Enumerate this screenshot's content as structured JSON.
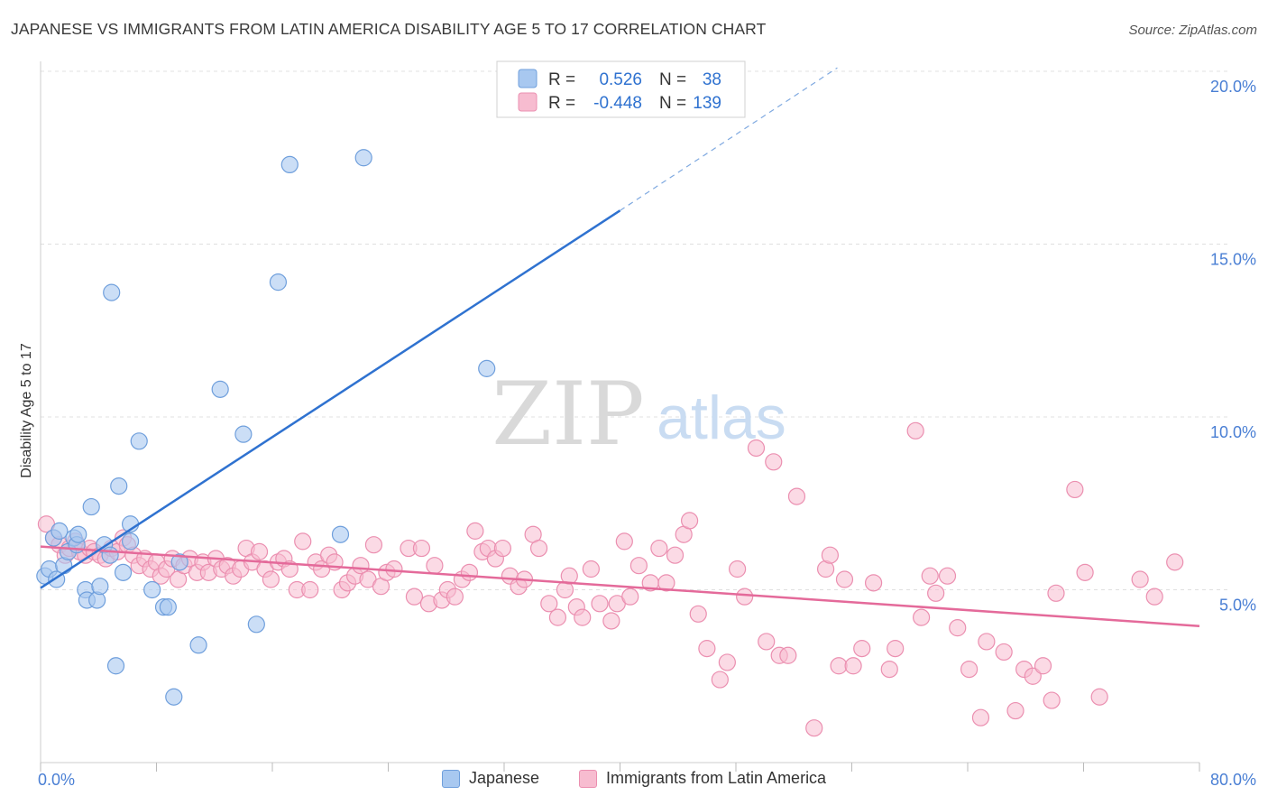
{
  "title": "JAPANESE VS IMMIGRANTS FROM LATIN AMERICA DISABILITY AGE 5 TO 17 CORRELATION CHART",
  "source": "Source: ZipAtlas.com",
  "watermark": {
    "zip": "ZIP",
    "atlas": "atlas"
  },
  "legend_top": {
    "r_label": "R =",
    "n_label": "N =",
    "rows": [
      {
        "r": "0.526",
        "n": "38"
      },
      {
        "r": "-0.448",
        "n": "139"
      }
    ]
  },
  "colors": {
    "japanese_fill": "#a8c8f0",
    "japanese_stroke": "#6f9fdc",
    "japanese_line": "#2f72d0",
    "latin_fill": "#f7bcd0",
    "latin_stroke": "#eb8fb0",
    "latin_line": "#e46a9a",
    "tick_text": "#4a7fd4",
    "grid": "#e0e0e0"
  },
  "chart_data": {
    "type": "scatter",
    "title": "JAPANESE VS IMMIGRANTS FROM LATIN AMERICA DISABILITY AGE 5 TO 17 CORRELATION CHART",
    "xlabel": "",
    "ylabel": "Disability Age 5 to 17",
    "xlim": [
      0,
      80
    ],
    "ylim": [
      0,
      20
    ],
    "x_tick_labels": [
      "0.0%",
      "80.0%"
    ],
    "y_ticks": [
      5,
      10,
      15,
      20
    ],
    "y_tick_labels": [
      "5.0%",
      "10.0%",
      "15.0%",
      "20.0%"
    ],
    "grid": true,
    "legend_position": "bottom",
    "series": [
      {
        "name": "Japanese",
        "points": [
          [
            0.3,
            5.4
          ],
          [
            0.6,
            5.6
          ],
          [
            0.9,
            6.5
          ],
          [
            1.1,
            5.3
          ],
          [
            1.3,
            6.7
          ],
          [
            1.6,
            5.7
          ],
          [
            1.9,
            6.1
          ],
          [
            2.3,
            6.5
          ],
          [
            2.5,
            6.3
          ],
          [
            2.6,
            6.6
          ],
          [
            3.1,
            5.0
          ],
          [
            3.2,
            4.7
          ],
          [
            3.5,
            7.4
          ],
          [
            3.9,
            4.7
          ],
          [
            4.1,
            5.1
          ],
          [
            4.4,
            6.3
          ],
          [
            4.8,
            6.0
          ],
          [
            4.9,
            13.6
          ],
          [
            5.2,
            2.8
          ],
          [
            5.4,
            8.0
          ],
          [
            5.7,
            5.5
          ],
          [
            6.2,
            6.4
          ],
          [
            6.2,
            6.9
          ],
          [
            6.8,
            9.3
          ],
          [
            7.7,
            5.0
          ],
          [
            8.5,
            4.5
          ],
          [
            8.8,
            4.5
          ],
          [
            9.2,
            1.9
          ],
          [
            9.6,
            5.8
          ],
          [
            10.9,
            3.4
          ],
          [
            12.4,
            10.8
          ],
          [
            14.0,
            9.5
          ],
          [
            14.9,
            4.0
          ],
          [
            16.4,
            13.9
          ],
          [
            17.2,
            17.3
          ],
          [
            20.7,
            6.6
          ],
          [
            22.3,
            17.5
          ],
          [
            30.8,
            11.4
          ]
        ],
        "trend": {
          "x": [
            0,
            40
          ],
          "y": [
            5.05,
            15.97
          ]
        },
        "trend_extension": {
          "x": [
            40,
            55
          ],
          "y": [
            15.97,
            20.1
          ]
        }
      },
      {
        "name": "Immigrants from Latin America",
        "points": [
          [
            0.4,
            6.9
          ],
          [
            0.9,
            6.5
          ],
          [
            1.3,
            6.3
          ],
          [
            1.7,
            6.0
          ],
          [
            2.0,
            6.2
          ],
          [
            2.4,
            6.4
          ],
          [
            2.7,
            6.1
          ],
          [
            3.1,
            6.0
          ],
          [
            3.4,
            6.2
          ],
          [
            3.7,
            6.1
          ],
          [
            4.1,
            6.0
          ],
          [
            4.5,
            5.9
          ],
          [
            4.9,
            6.2
          ],
          [
            5.3,
            6.1
          ],
          [
            5.7,
            6.5
          ],
          [
            6.0,
            6.3
          ],
          [
            6.4,
            6.0
          ],
          [
            6.8,
            5.7
          ],
          [
            7.2,
            5.9
          ],
          [
            7.6,
            5.6
          ],
          [
            8.0,
            5.8
          ],
          [
            8.3,
            5.4
          ],
          [
            8.7,
            5.6
          ],
          [
            9.1,
            5.9
          ],
          [
            9.5,
            5.3
          ],
          [
            9.9,
            5.7
          ],
          [
            10.3,
            5.9
          ],
          [
            10.8,
            5.5
          ],
          [
            11.2,
            5.8
          ],
          [
            11.6,
            5.5
          ],
          [
            12.1,
            5.9
          ],
          [
            12.5,
            5.6
          ],
          [
            12.9,
            5.7
          ],
          [
            13.3,
            5.4
          ],
          [
            13.8,
            5.6
          ],
          [
            14.2,
            6.2
          ],
          [
            14.6,
            5.8
          ],
          [
            15.1,
            6.1
          ],
          [
            15.5,
            5.6
          ],
          [
            15.9,
            5.3
          ],
          [
            16.4,
            5.8
          ],
          [
            16.8,
            5.9
          ],
          [
            17.2,
            5.6
          ],
          [
            17.7,
            5.0
          ],
          [
            18.1,
            6.4
          ],
          [
            18.6,
            5.0
          ],
          [
            19.0,
            5.8
          ],
          [
            19.4,
            5.6
          ],
          [
            19.9,
            6.0
          ],
          [
            20.3,
            5.8
          ],
          [
            20.8,
            5.0
          ],
          [
            21.2,
            5.2
          ],
          [
            21.7,
            5.4
          ],
          [
            22.1,
            5.7
          ],
          [
            22.6,
            5.3
          ],
          [
            23.0,
            6.3
          ],
          [
            23.5,
            5.1
          ],
          [
            23.9,
            5.5
          ],
          [
            24.4,
            5.6
          ],
          [
            25.4,
            6.2
          ],
          [
            25.8,
            4.8
          ],
          [
            26.3,
            6.2
          ],
          [
            26.8,
            4.6
          ],
          [
            27.2,
            5.7
          ],
          [
            27.7,
            4.7
          ],
          [
            28.1,
            5.0
          ],
          [
            28.6,
            4.8
          ],
          [
            29.1,
            5.3
          ],
          [
            29.6,
            5.5
          ],
          [
            30.0,
            6.7
          ],
          [
            30.5,
            6.1
          ],
          [
            30.9,
            6.2
          ],
          [
            31.4,
            5.9
          ],
          [
            31.9,
            6.2
          ],
          [
            32.4,
            5.4
          ],
          [
            33.0,
            5.1
          ],
          [
            33.4,
            5.3
          ],
          [
            34.0,
            6.6
          ],
          [
            34.4,
            6.2
          ],
          [
            35.1,
            4.6
          ],
          [
            35.7,
            4.2
          ],
          [
            36.2,
            5.0
          ],
          [
            36.5,
            5.4
          ],
          [
            37.0,
            4.5
          ],
          [
            37.4,
            4.2
          ],
          [
            38.0,
            5.6
          ],
          [
            38.6,
            4.6
          ],
          [
            39.4,
            4.1
          ],
          [
            39.8,
            4.6
          ],
          [
            40.3,
            6.4
          ],
          [
            40.7,
            4.8
          ],
          [
            41.3,
            5.7
          ],
          [
            42.1,
            5.2
          ],
          [
            42.7,
            6.2
          ],
          [
            43.2,
            5.2
          ],
          [
            43.8,
            6.0
          ],
          [
            44.4,
            6.6
          ],
          [
            44.8,
            7.0
          ],
          [
            45.4,
            4.3
          ],
          [
            46.0,
            3.3
          ],
          [
            46.9,
            2.4
          ],
          [
            47.4,
            2.9
          ],
          [
            48.1,
            5.6
          ],
          [
            48.6,
            4.8
          ],
          [
            49.4,
            9.1
          ],
          [
            50.1,
            3.5
          ],
          [
            50.6,
            8.7
          ],
          [
            51.0,
            3.1
          ],
          [
            51.6,
            3.1
          ],
          [
            52.2,
            7.7
          ],
          [
            53.4,
            1.0
          ],
          [
            54.2,
            5.6
          ],
          [
            54.5,
            6.0
          ],
          [
            55.1,
            2.8
          ],
          [
            55.5,
            5.3
          ],
          [
            56.1,
            2.8
          ],
          [
            56.7,
            3.3
          ],
          [
            57.5,
            5.2
          ],
          [
            58.6,
            2.7
          ],
          [
            59.0,
            3.3
          ],
          [
            60.4,
            9.6
          ],
          [
            60.8,
            4.2
          ],
          [
            61.4,
            5.4
          ],
          [
            61.8,
            4.9
          ],
          [
            62.6,
            5.4
          ],
          [
            63.3,
            3.9
          ],
          [
            64.1,
            2.7
          ],
          [
            64.9,
            1.3
          ],
          [
            65.3,
            3.5
          ],
          [
            66.5,
            3.2
          ],
          [
            67.3,
            1.5
          ],
          [
            67.9,
            2.7
          ],
          [
            68.5,
            2.5
          ],
          [
            69.2,
            2.8
          ],
          [
            69.8,
            1.8
          ],
          [
            70.1,
            4.9
          ],
          [
            71.4,
            7.9
          ],
          [
            72.1,
            5.5
          ],
          [
            73.1,
            1.9
          ],
          [
            75.9,
            5.3
          ],
          [
            76.9,
            4.8
          ],
          [
            78.3,
            5.8
          ]
        ],
        "trend": {
          "x": [
            0,
            80
          ],
          "y": [
            6.25,
            3.95
          ]
        }
      }
    ]
  },
  "bottom_legend": [
    {
      "label": "Japanese"
    },
    {
      "label": "Immigrants from Latin America"
    }
  ]
}
